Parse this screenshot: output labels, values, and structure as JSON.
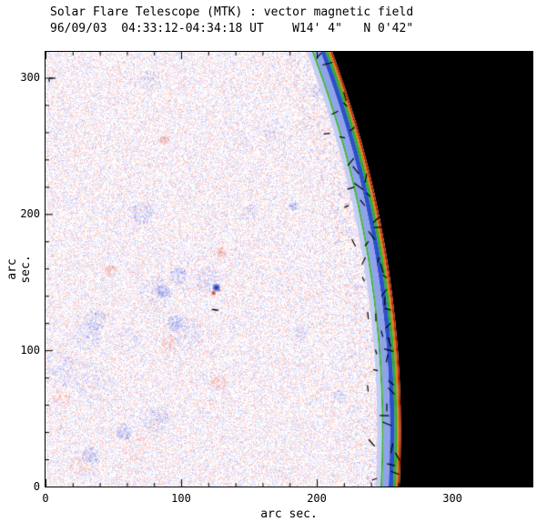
{
  "header": {
    "title": "Solar Flare Telescope (MTK) : vector magnetic field",
    "subtitle": "96/09/03  04:33:12-04:34:18 UT    W14' 4\"   N 0'42\""
  },
  "chart_data": {
    "type": "heatmap",
    "title": "Solar Flare Telescope (MTK) : vector magnetic field",
    "subtitle": "96/09/03  04:33:12-04:34:18 UT    W14' 4\"   N 0'42\"",
    "xlabel": "arc sec.",
    "ylabel": "arc sec.",
    "xlim": [
      0,
      359
    ],
    "ylim": [
      0,
      319
    ],
    "x_ticks": [
      0,
      100,
      200,
      300
    ],
    "y_ticks": [
      0,
      100,
      200,
      300
    ],
    "minor_tick_step": 20,
    "grid": false,
    "legend": "none",
    "content": "Quiet-Sun vector magnetogram near the west solar limb: white disk filled with fine red (positive) and blue (negative) polarity speckle noise, a small bipolar pore feature near (126,146) arc sec, rainbow contour bands tracing the curved solar limb at about x=212-262 arc sec, short black field-vector tick marks along the limb, and black sky beyond the limb",
    "limb": {
      "center_x": -541,
      "center_y": 40,
      "radius": 803
    },
    "limb_bands": [
      {
        "color": "#b42800",
        "width": 2
      },
      {
        "color": "#e87716",
        "width": 2
      },
      {
        "color": "#2fae2f",
        "width": 3
      },
      {
        "color": "#2b50c8",
        "width": 5
      },
      {
        "color": "#8fa2ea",
        "width": 7
      },
      {
        "color": "#3cb43c",
        "width": 2
      },
      {
        "color": "#c3cdf2",
        "width": 5
      }
    ],
    "palette": {
      "background": "#ffffff",
      "sky": "#000000",
      "axis": "#000000",
      "grain_positive": "#ff7864",
      "grain_negative": "#788cff",
      "vector_marks": "#000000",
      "pore_blue_halo": "#5a6ad8",
      "pore_blue_core": "#2838b0",
      "pore_red": "#d4503c"
    },
    "bipole_feature": {
      "x": 126,
      "y": 146
    }
  }
}
